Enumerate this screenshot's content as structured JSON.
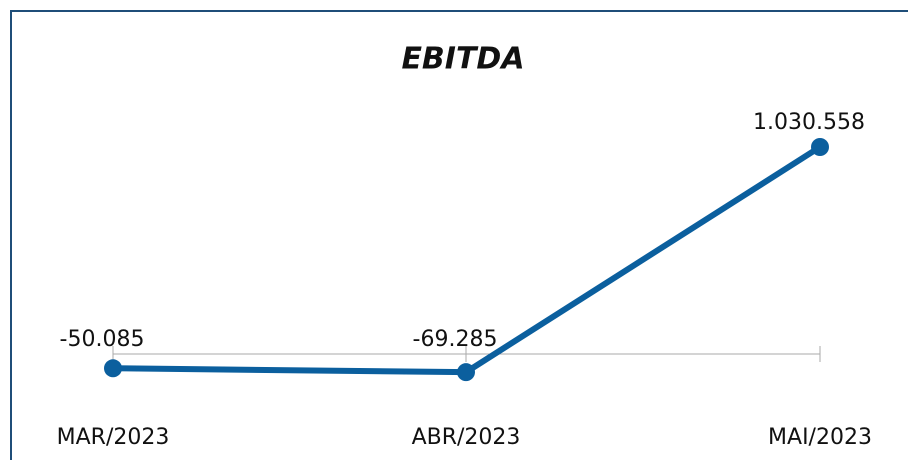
{
  "chart_data": {
    "type": "line",
    "title": "EBITDA",
    "categories": [
      "MAR/2023",
      "ABR/2023",
      "MAI/2023"
    ],
    "series": [
      {
        "color": "#0b5f9e",
        "values": [
          -50085,
          -69285,
          1030558
        ],
        "value_labels": [
          "-50.085",
          "-69.285",
          "1.030.558"
        ]
      }
    ]
  }
}
